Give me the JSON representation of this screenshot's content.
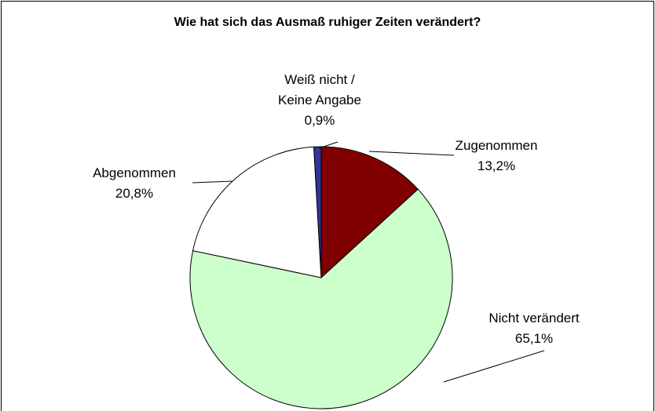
{
  "chart_data": {
    "type": "pie",
    "title": "Wie hat sich das Ausmaß ruhiger Zeiten verändert?",
    "categories": [
      "Zugenommen",
      "Nicht verändert",
      "Abgenommen",
      "Weiß nicht /\nKeine Angabe"
    ],
    "values": [
      13.2,
      65.1,
      20.8,
      0.9
    ],
    "value_labels": [
      "13,2%",
      "65,1%",
      "20,8%",
      "0,9%"
    ],
    "colors": [
      "#800000",
      "#ccffcc",
      "#ffffff",
      "#333399"
    ]
  }
}
